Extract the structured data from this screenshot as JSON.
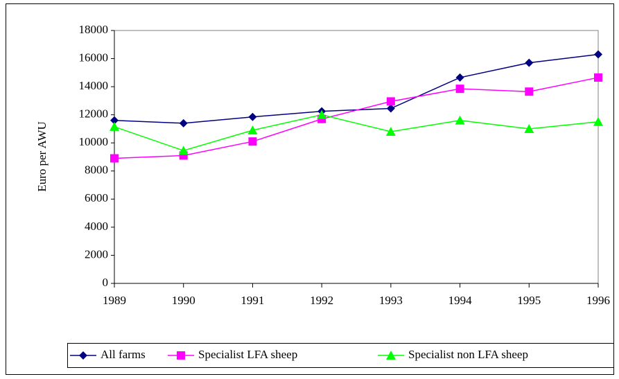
{
  "chart_data": {
    "type": "line",
    "y_label": "Euro per AWU",
    "categories": [
      "1989",
      "1990",
      "1991",
      "1992",
      "1993",
      "1994",
      "1995",
      "1996"
    ],
    "series": [
      {
        "name": "All farms",
        "color": "#000080",
        "marker": "diamond",
        "values": [
          11600,
          11400,
          11850,
          12250,
          12450,
          14650,
          15700,
          16300
        ]
      },
      {
        "name": "Specialist LFA sheep",
        "color": "#ff00ff",
        "marker": "square",
        "values": [
          8900,
          9100,
          10100,
          11700,
          12950,
          13850,
          13650,
          14650
        ]
      },
      {
        "name": "Specialist non LFA sheep",
        "color": "#00ff00",
        "marker": "triangle",
        "values": [
          11150,
          9450,
          10900,
          12000,
          10800,
          11600,
          11000,
          11500
        ]
      }
    ],
    "ylim": [
      0,
      18000
    ],
    "yticks": [
      0,
      2000,
      4000,
      6000,
      8000,
      10000,
      12000,
      14000,
      16000,
      18000
    ],
    "legend": "bottom"
  }
}
